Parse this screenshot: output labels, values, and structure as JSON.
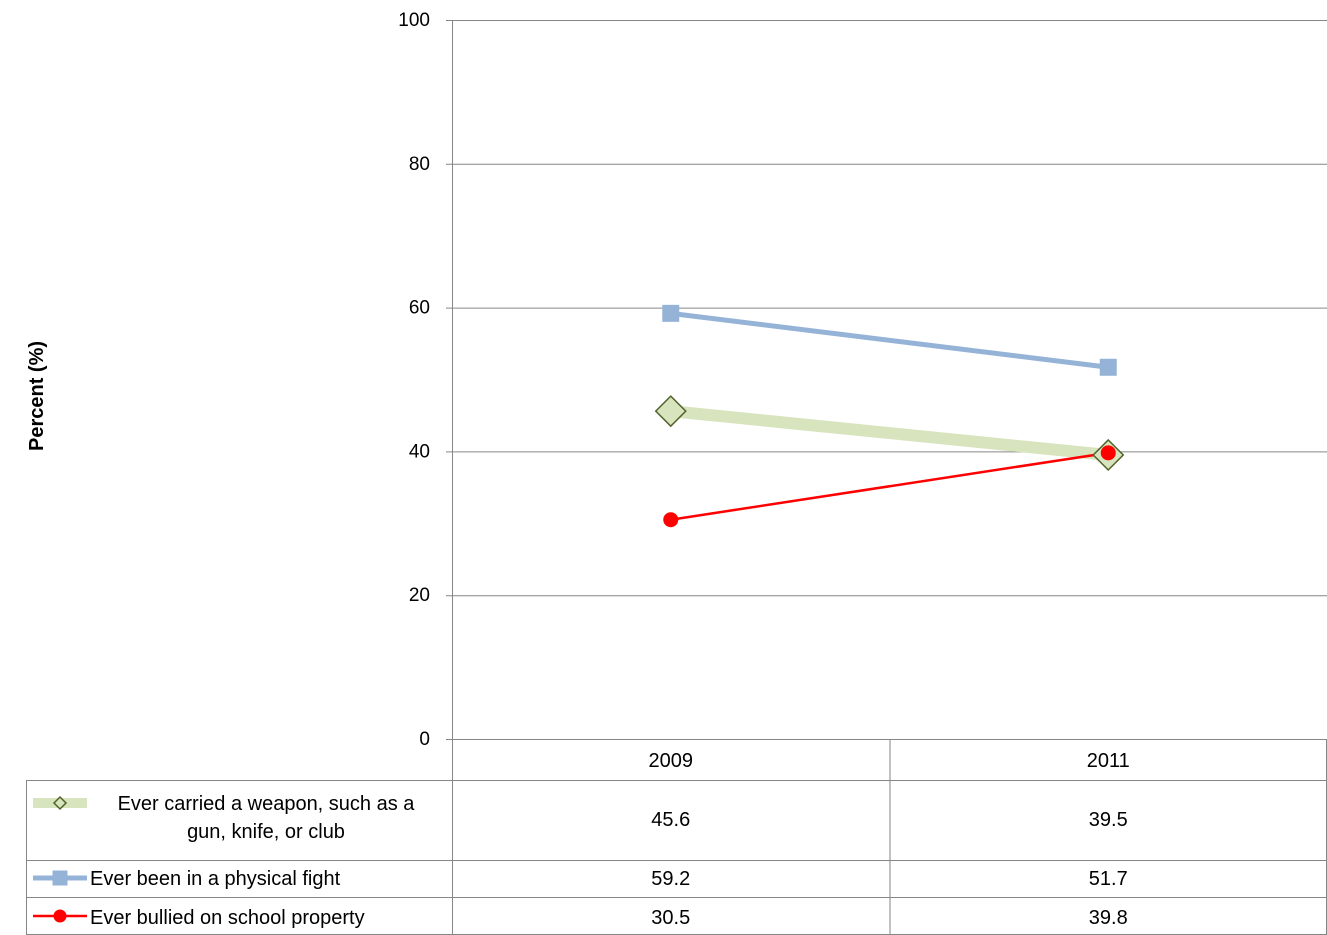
{
  "chart_data": {
    "type": "line",
    "categories": [
      "2009",
      "2011"
    ],
    "ylabel": "Percent (%)",
    "xlabel": "",
    "ylim": [
      0,
      100
    ],
    "yticks": [
      0,
      20,
      40,
      60,
      80,
      100
    ],
    "grid": true,
    "legend": "data-table-below",
    "series": [
      {
        "name": "Ever carried a weapon, such as a gun, knife, or club",
        "name_lines": [
          "Ever carried a weapon, such as a",
          "gun, knife, or club"
        ],
        "values": [
          45.6,
          39.5
        ],
        "color": "#d7e4bd",
        "marker": "diamond",
        "marker_fill": "#d7e4bd",
        "marker_stroke": "#4f6228"
      },
      {
        "name": "Ever been in a physical fight",
        "values": [
          59.2,
          51.7
        ],
        "color": "#95b3d7",
        "marker": "square",
        "marker_fill": "#95b3d7",
        "marker_stroke": "#95b3d7"
      },
      {
        "name": "Ever bullied on school property",
        "values": [
          30.5,
          39.8
        ],
        "color": "#ff0000",
        "marker": "circle",
        "marker_fill": "#ff0000",
        "marker_stroke": "#ff0000"
      }
    ]
  }
}
